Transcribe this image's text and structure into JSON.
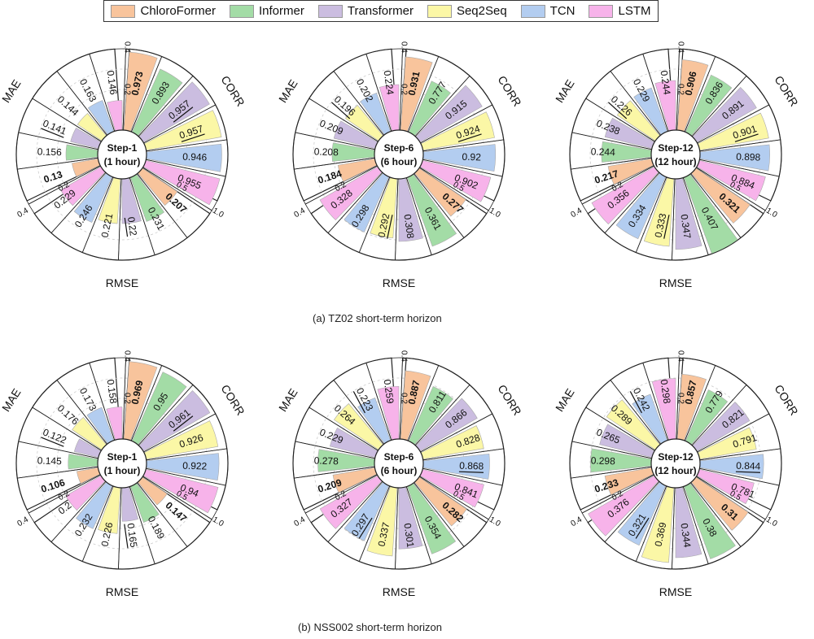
{
  "legend": [
    {
      "name": "ChloroFormer",
      "color": "#f8c49c"
    },
    {
      "name": "Informer",
      "color": "#a3dca6"
    },
    {
      "name": "Transformer",
      "color": "#cbbde0"
    },
    {
      "name": "Seq2Seq",
      "color": "#fbf7a6"
    },
    {
      "name": "TCN",
      "color": "#b3cdf0"
    },
    {
      "name": "LSTM",
      "color": "#f7b3ea"
    }
  ],
  "captions": {
    "a": "(a) TZ02 short-term horizon",
    "b": "(b) NSS002 short-term horizon"
  },
  "chart_data": [
    {
      "type": "radial-bar",
      "panel": "a",
      "title": "Step-1",
      "subtitle": "(1 hour)",
      "metric_labels": [
        "MAE",
        "CORR",
        "RMSE"
      ],
      "tick_labels": {
        "mae_outer": "0.4",
        "mae_inner": "0.2",
        "corr_outer": "1.0",
        "corr_inner": "0.5",
        "rmse_outer": "0.4",
        "rmse_inner": "0.2"
      },
      "series": [
        "ChloroFormer",
        "Informer",
        "Transformer",
        "Seq2Seq",
        "TCN",
        "LSTM"
      ],
      "mae": [
        0.13,
        0.156,
        0.141,
        0.144,
        0.163,
        0.146
      ],
      "corr": [
        0.973,
        0.893,
        0.957,
        0.957,
        0.946,
        0.955
      ],
      "rmse": [
        0.207,
        0.231,
        0.22,
        0.221,
        0.246,
        0.229
      ],
      "mae_labels": [
        "0.13",
        "0.156",
        "0.141",
        "0.144",
        "0.163",
        "0.146"
      ],
      "corr_labels": [
        "0.973",
        "0.893",
        "0.957",
        "0.957",
        "0.946",
        "0.955"
      ],
      "rmse_labels": [
        "0.207",
        "0.231",
        "0.22",
        "0.221",
        "0.246",
        "0.229"
      ],
      "best": {
        "mae": 0,
        "corr": 0,
        "rmse": 0
      },
      "second": {
        "mae": 2,
        "corr": [
          2,
          3
        ],
        "rmse": 2
      }
    },
    {
      "type": "radial-bar",
      "panel": "a",
      "title": "Step-6",
      "subtitle": "(6 hour)",
      "metric_labels": [
        "MAE",
        "CORR",
        "RMSE"
      ],
      "tick_labels": {
        "mae_outer": "0.4",
        "mae_inner": "0.2",
        "corr_outer": "1.0",
        "corr_inner": "0.5",
        "rmse_outer": "0.4",
        "rmse_inner": "0.2"
      },
      "series": [
        "ChloroFormer",
        "Informer",
        "Transformer",
        "Seq2Seq",
        "TCN",
        "LSTM"
      ],
      "mae": [
        0.184,
        0.208,
        0.209,
        0.196,
        0.202,
        0.224
      ],
      "corr": [
        0.931,
        0.777,
        0.915,
        0.924,
        0.92,
        0.902
      ],
      "rmse": [
        0.277,
        0.361,
        0.308,
        0.292,
        0.298,
        0.328
      ],
      "mae_labels": [
        "0.184",
        "0.208",
        "0.209",
        "0.196",
        "0.202",
        "0.224"
      ],
      "corr_labels": [
        "0.931",
        "0.777",
        "0.915",
        "0.924",
        "0.92",
        "0.902"
      ],
      "rmse_labels": [
        "0.277",
        "0.361",
        "0.308",
        "0.292",
        "0.298",
        "0.328"
      ],
      "best": {
        "mae": 0,
        "corr": 0,
        "rmse": 0
      },
      "second": {
        "mae": 3,
        "corr": 3,
        "rmse": 3
      }
    },
    {
      "type": "radial-bar",
      "panel": "a",
      "title": "Step-12",
      "subtitle": "(12 hour)",
      "metric_labels": [
        "MAE",
        "CORR",
        "RMSE"
      ],
      "tick_labels": {
        "mae_outer": "0.4",
        "mae_inner": "0.2",
        "corr_outer": "1.0",
        "corr_inner": "0.5",
        "rmse_outer": "0.4",
        "rmse_inner": "0.2"
      },
      "series": [
        "ChloroFormer",
        "Informer",
        "Transformer",
        "Seq2Seq",
        "TCN",
        "LSTM"
      ],
      "mae": [
        0.217,
        0.244,
        0.238,
        0.226,
        0.229,
        0.244
      ],
      "corr": [
        0.906,
        0.836,
        0.891,
        0.901,
        0.898,
        0.884
      ],
      "rmse": [
        0.321,
        0.407,
        0.347,
        0.333,
        0.334,
        0.356
      ],
      "mae_labels": [
        "0.217",
        "0.244",
        "0.238",
        "0.226",
        "0.229",
        "0.244"
      ],
      "corr_labels": [
        "0.906",
        "0.836",
        "0.891",
        "0.901",
        "0.898",
        "0.884"
      ],
      "rmse_labels": [
        "0.321",
        "0.407",
        "0.347",
        "0.333",
        "0.334",
        "0.356"
      ],
      "best": {
        "mae": 0,
        "corr": 0,
        "rmse": 0
      },
      "second": {
        "mae": 3,
        "corr": 3,
        "rmse": 3
      }
    },
    {
      "type": "radial-bar",
      "panel": "b",
      "title": "Step-1",
      "subtitle": "(1 hour)",
      "metric_labels": [
        "MAE",
        "CORR",
        "RMSE"
      ],
      "tick_labels": {
        "mae_outer": "0.4",
        "mae_inner": "0.2",
        "corr_outer": "1.0",
        "corr_inner": "0.5",
        "rmse_outer": "0.4",
        "rmse_inner": "0.2"
      },
      "series": [
        "ChloroFormer",
        "Informer",
        "Transformer",
        "Seq2Seq",
        "TCN",
        "LSTM"
      ],
      "mae": [
        0.106,
        0.145,
        0.122,
        0.176,
        0.173,
        0.158
      ],
      "corr": [
        0.969,
        0.95,
        0.961,
        0.926,
        0.922,
        0.94
      ],
      "rmse": [
        0.147,
        0.189,
        0.165,
        0.226,
        0.232,
        0.2
      ],
      "mae_labels": [
        "0.106",
        "0.145",
        "0.122",
        "0.176",
        "0.173",
        "0.158"
      ],
      "corr_labels": [
        "0.969",
        "0.95",
        "0.961",
        "0.926",
        "0.922",
        "0.94"
      ],
      "rmse_labels": [
        "0.147",
        "0.189",
        "0.165",
        "0.226",
        "0.232",
        "0.2"
      ],
      "best": {
        "mae": 0,
        "corr": 0,
        "rmse": 0
      },
      "second": {
        "mae": 2,
        "corr": 2,
        "rmse": 2
      }
    },
    {
      "type": "radial-bar",
      "panel": "b",
      "title": "Step-6",
      "subtitle": "(6 hour)",
      "metric_labels": [
        "MAE",
        "CORR",
        "RMSE"
      ],
      "tick_labels": {
        "mae_outer": "0.4",
        "mae_inner": "0.2",
        "corr_outer": "1.0",
        "corr_inner": "0.5",
        "rmse_outer": "0.4",
        "rmse_inner": "0.2"
      },
      "series": [
        "ChloroFormer",
        "Informer",
        "Transformer",
        "Seq2Seq",
        "TCN",
        "LSTM"
      ],
      "mae": [
        0.209,
        0.278,
        0.229,
        0.264,
        0.223,
        0.259
      ],
      "corr": [
        0.887,
        0.811,
        0.866,
        0.828,
        0.868,
        0.841
      ],
      "rmse": [
        0.282,
        0.354,
        0.301,
        0.337,
        0.297,
        0.327
      ],
      "mae_labels": [
        "0.209",
        "0.278",
        "0.229",
        "0.264",
        "0.223",
        "0.259"
      ],
      "corr_labels": [
        "0.887",
        "0.811",
        "0.866",
        "0.828",
        "0.868",
        "0.841"
      ],
      "rmse_labels": [
        "0.282",
        "0.354",
        "0.301",
        "0.337",
        "0.297",
        "0.327"
      ],
      "best": {
        "mae": 0,
        "corr": 0,
        "rmse": 0
      },
      "second": {
        "mae": 4,
        "corr": 4,
        "rmse": 4
      }
    },
    {
      "type": "radial-bar",
      "panel": "b",
      "title": "Step-12",
      "subtitle": "(12 hour)",
      "metric_labels": [
        "MAE",
        "CORR",
        "RMSE"
      ],
      "tick_labels": {
        "mae_outer": "0.4",
        "mae_inner": "0.2",
        "corr_outer": "1.0",
        "corr_inner": "0.5",
        "rmse_outer": "0.4",
        "rmse_inner": "0.2"
      },
      "series": [
        "ChloroFormer",
        "Informer",
        "Transformer",
        "Seq2Seq",
        "TCN",
        "LSTM"
      ],
      "mae": [
        0.233,
        0.298,
        0.265,
        0.289,
        0.242,
        0.298
      ],
      "corr": [
        0.857,
        0.779,
        0.821,
        0.791,
        0.844,
        0.781
      ],
      "rmse": [
        0.31,
        0.38,
        0.344,
        0.369,
        0.321,
        0.376
      ],
      "mae_labels": [
        "0.233",
        "0.298",
        "0.265",
        "0.289",
        "0.242",
        "0.298"
      ],
      "corr_labels": [
        "0.857",
        "0.779",
        "0.821",
        "0.791",
        "0.844",
        "0.781"
      ],
      "rmse_labels": [
        "0.31",
        "0.38",
        "0.344",
        "0.369",
        "0.321",
        "0.376"
      ],
      "best": {
        "mae": 0,
        "corr": 0,
        "rmse": 0
      },
      "second": {
        "mae": 4,
        "corr": 4,
        "rmse": 4
      }
    }
  ]
}
